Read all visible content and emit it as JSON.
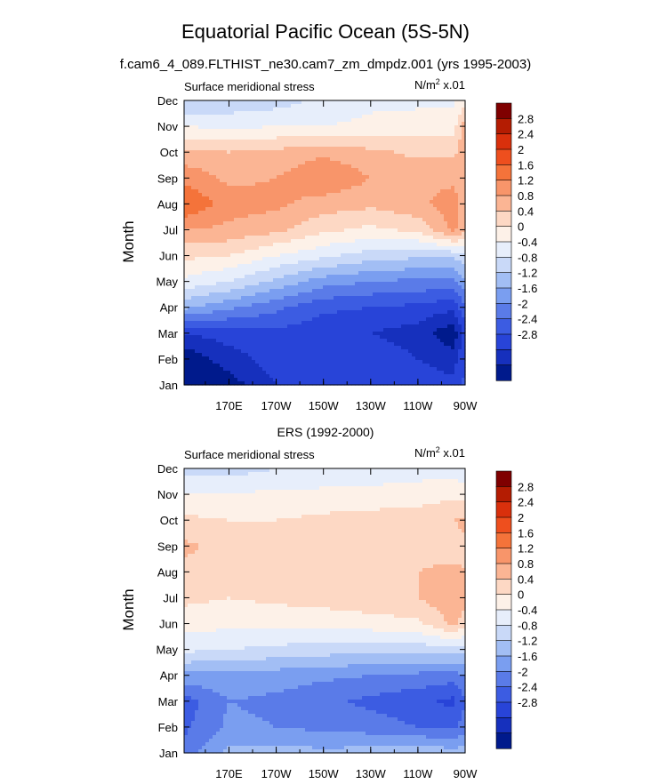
{
  "title": "Equatorial Pacific Ocean (5S-5N)",
  "subtitle": "f.cam6_4_089.FLTHIST_ne30.cam7_zm_dmpdz.001 (yrs 1995-2003)",
  "panel2_title": "ERS (1992-2000)",
  "chart_data": [
    {
      "type": "heatmap",
      "name": "model",
      "left_label": "Surface meridional stress",
      "units_prefix": "N/m",
      "units_sup": "2",
      "units_suffix": " x.01",
      "ylabel": "Month",
      "months": [
        "Jan",
        "Feb",
        "Mar",
        "Apr",
        "May",
        "Jun",
        "Jul",
        "Aug",
        "Sep",
        "Oct",
        "Nov",
        "Dec"
      ],
      "x_ticks": [
        {
          "lon": 190,
          "label": "170E"
        },
        {
          "lon": 170,
          "label": "170W"
        },
        {
          "lon": 150,
          "label": "150W"
        },
        {
          "lon": 130,
          "label": "130W"
        },
        {
          "lon": 110,
          "label": "110W"
        },
        {
          "lon": 90,
          "label": "90W"
        }
      ],
      "x_range_lon_west": [
        209,
        90
      ],
      "lons_west": [
        209,
        190,
        170,
        150,
        130,
        110,
        95,
        90
      ],
      "values": [
        [
          -3.2,
          -3.0,
          -2.4,
          -2.2,
          -2.0,
          -2.1,
          -2.3,
          -1.9
        ],
        [
          -3.1,
          -2.6,
          -2.2,
          -2.1,
          -2.1,
          -2.4,
          -2.6,
          -2.0
        ],
        [
          -2.4,
          -2.2,
          -2.1,
          -2.3,
          -2.4,
          -2.6,
          -3.1,
          -2.2
        ],
        [
          -0.7,
          -1.1,
          -1.5,
          -1.9,
          -2.0,
          -2.1,
          -2.3,
          -1.7
        ],
        [
          0.3,
          0.0,
          -0.5,
          -1.0,
          -1.2,
          -1.3,
          -1.3,
          -0.9
        ],
        [
          0.9,
          0.8,
          0.4,
          0.1,
          -0.2,
          -0.3,
          -0.3,
          -0.1
        ],
        [
          1.6,
          1.5,
          1.3,
          0.9,
          0.7,
          0.9,
          1.7,
          1.3
        ],
        [
          2.4,
          1.8,
          1.7,
          1.4,
          1.3,
          1.5,
          1.8,
          1.4
        ],
        [
          1.9,
          1.5,
          1.6,
          2.0,
          1.6,
          1.5,
          1.5,
          1.3
        ],
        [
          1.3,
          1.2,
          1.3,
          1.5,
          1.3,
          1.1,
          1.1,
          1.5
        ],
        [
          0.4,
          0.3,
          0.4,
          0.4,
          0.5,
          0.6,
          0.6,
          1.5
        ],
        [
          -0.4,
          -0.3,
          -0.2,
          0.1,
          0.3,
          0.3,
          0.3,
          0.6
        ]
      ],
      "levels": [
        -2.8,
        -2.4,
        -2.0,
        -1.6,
        -1.2,
        -0.8,
        -0.4,
        0,
        0.4,
        0.8,
        1.2,
        1.6,
        2.0,
        2.4,
        2.8
      ]
    },
    {
      "type": "heatmap",
      "name": "ERS",
      "left_label": "Surface meridional stress",
      "units_prefix": "N/m",
      "units_sup": "2",
      "units_suffix": " x.01",
      "ylabel": "Month",
      "months": [
        "Jan",
        "Feb",
        "Mar",
        "Apr",
        "May",
        "Jun",
        "Jul",
        "Aug",
        "Sep",
        "Oct",
        "Nov",
        "Dec"
      ],
      "x_ticks": [
        {
          "lon": 190,
          "label": "170E"
        },
        {
          "lon": 170,
          "label": "170W"
        },
        {
          "lon": 150,
          "label": "150W"
        },
        {
          "lon": 130,
          "label": "130W"
        },
        {
          "lon": 110,
          "label": "110W"
        },
        {
          "lon": 90,
          "label": "90W"
        }
      ],
      "x_range_lon_west": [
        209,
        90
      ],
      "lons_west": [
        209,
        190,
        170,
        150,
        130,
        110,
        95,
        90
      ],
      "values": [
        [
          -1.4,
          -0.7,
          -0.6,
          -0.7,
          -0.6,
          -0.5,
          -0.6,
          -0.6
        ],
        [
          -1.7,
          -1.1,
          -1.2,
          -1.3,
          -1.4,
          -1.6,
          -1.7,
          -1.4
        ],
        [
          -1.8,
          -1.2,
          -1.3,
          -1.5,
          -1.7,
          -1.9,
          -2.1,
          -1.6
        ],
        [
          -0.9,
          -0.9,
          -1.0,
          -1.1,
          -1.2,
          -1.3,
          -1.4,
          -1.2
        ],
        [
          0.1,
          0.0,
          -0.1,
          -0.2,
          -0.2,
          -0.2,
          -0.2,
          -0.2
        ],
        [
          0.6,
          0.5,
          0.5,
          0.5,
          0.6,
          0.7,
          1.3,
          1.0
        ],
        [
          0.9,
          0.8,
          0.9,
          1.0,
          1.1,
          1.2,
          1.5,
          1.3
        ],
        [
          1.1,
          1.0,
          1.1,
          1.2,
          1.2,
          1.2,
          1.3,
          1.2
        ],
        [
          1.3,
          1.0,
          1.1,
          1.1,
          1.2,
          1.1,
          1.0,
          1.1
        ],
        [
          0.9,
          0.8,
          0.8,
          0.9,
          1.0,
          1.0,
          1.2,
          1.3
        ],
        [
          0.4,
          0.4,
          0.5,
          0.5,
          0.5,
          0.6,
          0.7,
          0.6
        ],
        [
          -0.2,
          -0.2,
          0.0,
          0.1,
          0.2,
          0.2,
          0.2,
          0.1
        ]
      ],
      "levels": [
        -2.8,
        -2.4,
        -2.0,
        -1.6,
        -1.2,
        -0.8,
        -0.4,
        0,
        0.4,
        0.8,
        1.2,
        1.6,
        2.0,
        2.4,
        2.8
      ]
    }
  ],
  "colorbar": {
    "labels": [
      "2.8",
      "2.4",
      "2",
      "1.6",
      "1.2",
      "0.8",
      "0.4",
      "0",
      "-0.4",
      "-0.8",
      "-1.2",
      "-1.6",
      "-2",
      "-2.4",
      "-2.8"
    ],
    "colors": [
      "#7f0000",
      "#b41c02",
      "#d9300c",
      "#ee4f1e",
      "#f4733a",
      "#f8956a",
      "#fbb594",
      "#fdd8c4",
      "#fdf1e8",
      "#e7eefb",
      "#c9d9f8",
      "#a2bef4",
      "#7a9ef0",
      "#5a7be8",
      "#3c5ce2",
      "#2844d8",
      "#1630bd",
      "#001a8c"
    ]
  }
}
